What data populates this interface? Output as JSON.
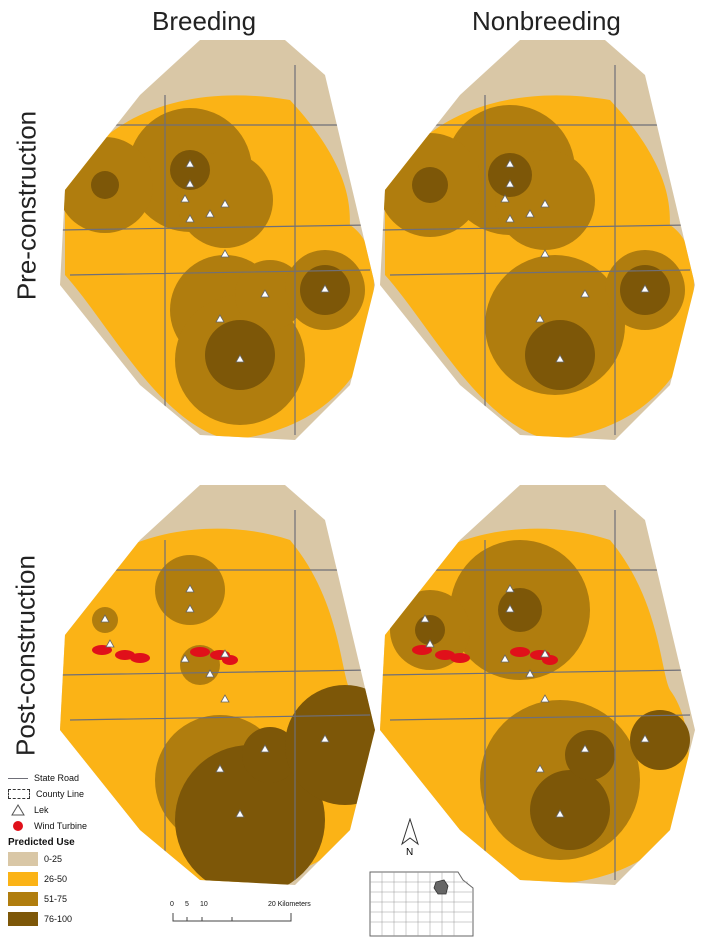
{
  "columns": [
    "Breeding",
    "Nonbreeding"
  ],
  "rows": [
    "Pre-construction",
    "Post-construction"
  ],
  "legend": {
    "state_road": "State Road",
    "county_line": "County Line",
    "lek": "Lek",
    "wind_turbine": "Wind Turbine",
    "title": "Predicted Use",
    "classes": [
      {
        "label": "0-25",
        "color": "#d9c7a6"
      },
      {
        "label": "26-50",
        "color": "#fbb316"
      },
      {
        "label": "51-75",
        "color": "#b07d0e"
      },
      {
        "label": "76-100",
        "color": "#7d5708"
      }
    ]
  },
  "scale_bar": {
    "ticks": [
      "0",
      "5",
      "10",
      "20 Kilometers"
    ]
  },
  "north_arrow": "N",
  "colors": {
    "low": "#d9c7a6",
    "mid": "#fbb316",
    "high": "#b07d0e",
    "top": "#7d5708",
    "turbine": "#e0101a"
  }
}
